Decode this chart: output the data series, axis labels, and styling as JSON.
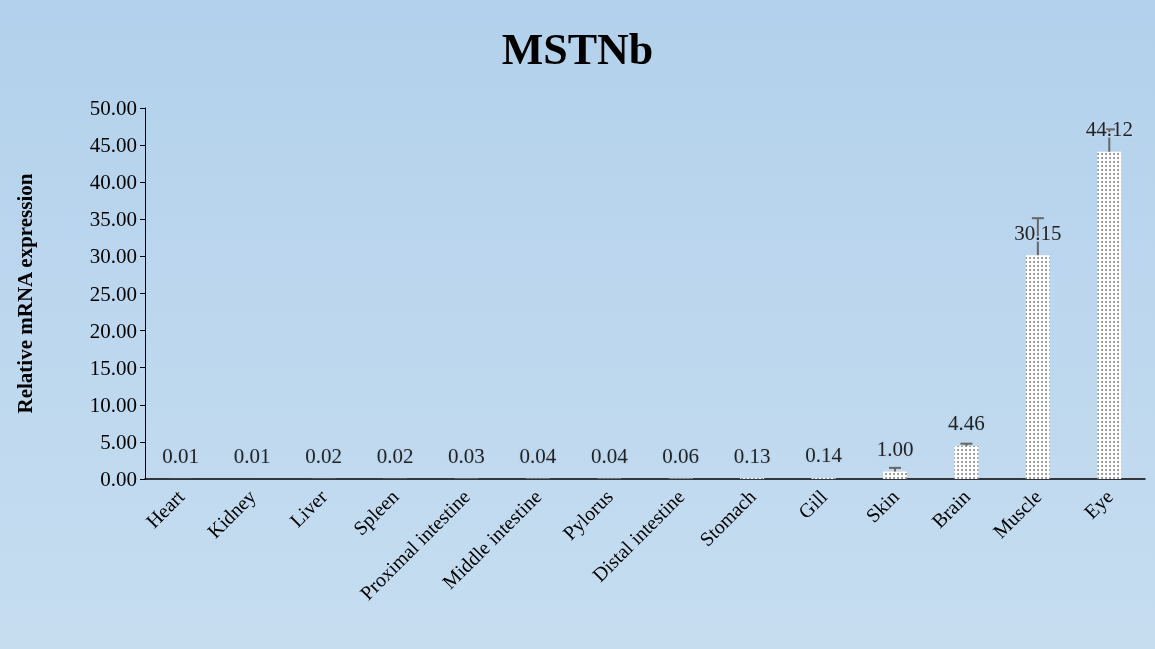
{
  "chart_data": {
    "type": "bar",
    "title": "MSTNb",
    "ylabel": "Relative mRNA expression",
    "categories": [
      "Heart",
      "Kidney",
      "Liver",
      "Spleen",
      "Proximal intestine",
      "Middle intestine",
      "Pylorus",
      "Distal intestine",
      "Stomach",
      "Gill",
      "Skin",
      "Brain",
      "Muscle",
      "Eye"
    ],
    "values": [
      0.01,
      0.01,
      0.02,
      0.02,
      0.03,
      0.04,
      0.04,
      0.06,
      0.13,
      0.14,
      1.0,
      4.46,
      30.15,
      44.12
    ],
    "errors": [
      null,
      null,
      null,
      null,
      null,
      null,
      null,
      null,
      null,
      null,
      0.5,
      0.3,
      5.0,
      3.0
    ],
    "value_labels": [
      "0.01",
      "0.01",
      "0.02",
      "0.02",
      "0.03",
      "0.04",
      "0.04",
      "0.06",
      "0.13",
      "0.14",
      "1.00",
      "4.46",
      "30.15",
      "44.12"
    ],
    "color": "#ffffff",
    "ylim": [
      0,
      50
    ],
    "yticks": [
      {
        "value": 0,
        "label": "0.00"
      },
      {
        "value": 5,
        "label": "5.00"
      },
      {
        "value": 10,
        "label": "10.00"
      },
      {
        "value": 15,
        "label": "15.00"
      },
      {
        "value": 20,
        "label": "20.00"
      },
      {
        "value": 25,
        "label": "25.00"
      },
      {
        "value": 30,
        "label": "30.00"
      },
      {
        "value": 35,
        "label": "35.00"
      },
      {
        "value": 40,
        "label": "40.00"
      },
      {
        "value": 45,
        "label": "45.00"
      },
      {
        "value": 50,
        "label": "50.00"
      }
    ],
    "grid": false
  }
}
